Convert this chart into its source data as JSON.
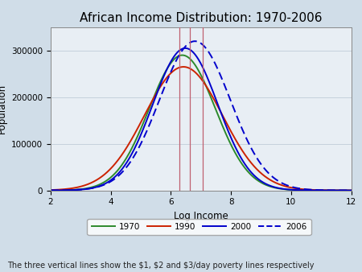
{
  "title": "African Income Distribution: 1970-2006",
  "xlabel": "Log Income",
  "ylabel": "Population",
  "xlim": [
    2,
    12
  ],
  "ylim": [
    0,
    350000
  ],
  "yticks": [
    0,
    100000,
    200000,
    300000
  ],
  "xticks": [
    2,
    4,
    6,
    8,
    10,
    12
  ],
  "figure_bg_color": "#d0dde8",
  "plot_bg_color": "#e8eef4",
  "curves": [
    {
      "label": "1970",
      "color": "#2c8a2c",
      "linestyle": "solid",
      "mean": 6.38,
      "std": 1.1,
      "scale": 290000
    },
    {
      "label": "1990",
      "color": "#cc2200",
      "linestyle": "solid",
      "mean": 6.42,
      "std": 1.3,
      "scale": 265000
    },
    {
      "label": "2000",
      "color": "#0000cc",
      "linestyle": "solid",
      "mean": 6.48,
      "std": 1.08,
      "scale": 305000
    },
    {
      "label": "2006",
      "color": "#0000cc",
      "linestyle": "dashed",
      "mean": 6.8,
      "std": 1.18,
      "scale": 320000
    }
  ],
  "vlines": [
    6.28,
    6.63,
    7.05
  ],
  "vline_color": "#c06070",
  "vline_linewidth": 0.9,
  "footnote": "The three vertical lines show the $1, $2 and $3/day poverty lines respectively",
  "footnote_fontsize": 7.0,
  "title_fontsize": 11,
  "axis_label_fontsize": 8.5,
  "tick_fontsize": 7.5,
  "legend_fontsize": 7.5,
  "grid_color": "#c0cdd8",
  "grid_linewidth": 0.6
}
